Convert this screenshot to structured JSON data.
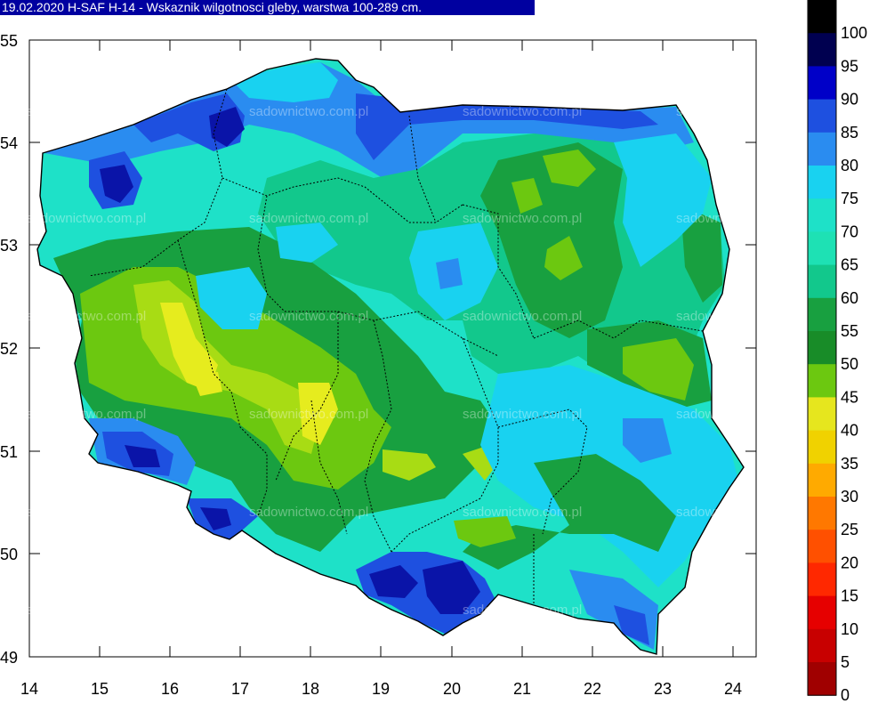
{
  "title": "19.02.2020 H-SAF H-14 - Wskaznik wilgotnosci gleby, warstwa 100-289 cm.",
  "map": {
    "lon_ticks": [
      "14",
      "15",
      "16",
      "17",
      "18",
      "19",
      "20",
      "21",
      "22",
      "23",
      "24"
    ],
    "lat_ticks": [
      "55",
      "54",
      "53",
      "52",
      "51",
      "50",
      "49"
    ],
    "watermark": "sadownictwo.com.pl",
    "fill_colors": {
      "water": "#ffffff",
      "blue_dark": "#0a14a8",
      "blue": "#1e50e0",
      "blue_light": "#2a8cf0",
      "cyan": "#19d2f0",
      "aqua": "#1ee1c8",
      "teal_green": "#12c88c",
      "green": "#18a040",
      "green_mid": "#2a9628",
      "green_yellow": "#6cc810",
      "yellow_green": "#a8dc14",
      "yellow": "#e6ec1e"
    }
  },
  "legend": {
    "labels": [
      "100",
      "95",
      "90",
      "85",
      "80",
      "75",
      "70",
      "65",
      "60",
      "55",
      "50",
      "45",
      "40",
      "35",
      "30",
      "25",
      "20",
      "15",
      "10",
      "5",
      "0"
    ],
    "colors": [
      "#000000",
      "#000050",
      "#0000c8",
      "#1e50e0",
      "#2a8cf0",
      "#19d2f0",
      "#1ee1c8",
      "#1ee1b4",
      "#12c88c",
      "#18a040",
      "#188c28",
      "#6cc810",
      "#e6e61e",
      "#f0d200",
      "#ffaa00",
      "#ff7800",
      "#ff5000",
      "#ff2800",
      "#e60000",
      "#c80000",
      "#a00000"
    ]
  }
}
